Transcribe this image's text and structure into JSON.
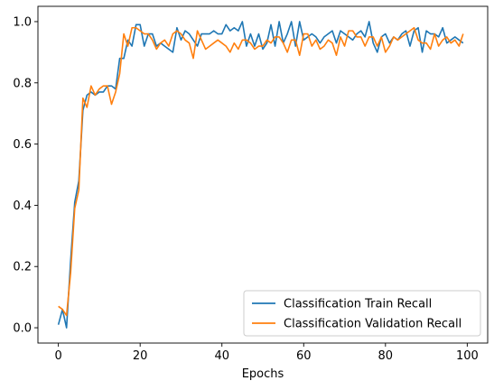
{
  "chart_data": {
    "type": "line",
    "title": "",
    "xlabel": "Epochs",
    "ylabel": "",
    "xlim": [
      -5,
      105
    ],
    "ylim": [
      -0.05,
      1.05
    ],
    "x_ticks": [
      0,
      20,
      40,
      60,
      80,
      100
    ],
    "y_ticks": [
      0.0,
      0.2,
      0.4,
      0.6,
      0.8,
      1.0
    ],
    "x_tick_labels": [
      "0",
      "20",
      "40",
      "60",
      "80",
      "100"
    ],
    "y_tick_labels": [
      "0.0",
      "0.2",
      "0.4",
      "0.6",
      "0.8",
      "1.0"
    ],
    "grid": false,
    "legend_position": "bottom-right",
    "x": [
      0,
      1,
      2,
      3,
      4,
      5,
      6,
      7,
      8,
      9,
      10,
      11,
      12,
      13,
      14,
      15,
      16,
      17,
      18,
      19,
      20,
      21,
      22,
      23,
      24,
      25,
      26,
      27,
      28,
      29,
      30,
      31,
      32,
      33,
      34,
      35,
      36,
      37,
      38,
      39,
      40,
      41,
      42,
      43,
      44,
      45,
      46,
      47,
      48,
      49,
      50,
      51,
      52,
      53,
      54,
      55,
      56,
      57,
      58,
      59,
      60,
      61,
      62,
      63,
      64,
      65,
      66,
      67,
      68,
      69,
      70,
      71,
      72,
      73,
      74,
      75,
      76,
      77,
      78,
      79,
      80,
      81,
      82,
      83,
      84,
      85,
      86,
      87,
      88,
      89,
      90,
      91,
      92,
      93,
      94,
      95,
      96,
      97,
      98,
      99
    ],
    "series": [
      {
        "name": "Classification Train Recall",
        "color": "#1f77b4",
        "values": [
          0.01,
          0.06,
          0.0,
          0.22,
          0.41,
          0.48,
          0.71,
          0.76,
          0.77,
          0.76,
          0.77,
          0.77,
          0.79,
          0.79,
          0.78,
          0.88,
          0.88,
          0.94,
          0.92,
          0.99,
          0.99,
          0.92,
          0.96,
          0.96,
          0.92,
          0.93,
          0.92,
          0.91,
          0.9,
          0.98,
          0.94,
          0.97,
          0.96,
          0.94,
          0.92,
          0.96,
          0.96,
          0.96,
          0.97,
          0.96,
          0.96,
          0.99,
          0.97,
          0.98,
          0.97,
          1.0,
          0.92,
          0.96,
          0.92,
          0.96,
          0.91,
          0.93,
          0.99,
          0.92,
          1.0,
          0.93,
          0.96,
          1.0,
          0.92,
          1.0,
          0.94,
          0.95,
          0.96,
          0.95,
          0.93,
          0.95,
          0.96,
          0.97,
          0.93,
          0.97,
          0.96,
          0.95,
          0.94,
          0.96,
          0.97,
          0.95,
          1.0,
          0.93,
          0.9,
          0.95,
          0.96,
          0.93,
          0.95,
          0.94,
          0.96,
          0.97,
          0.92,
          0.97,
          0.98,
          0.9,
          0.97,
          0.96,
          0.96,
          0.95,
          0.98,
          0.93,
          0.94,
          0.95,
          0.94,
          0.93
        ]
      },
      {
        "name": "Classification Validation Recall",
        "color": "#ff7f0e",
        "values": [
          0.07,
          0.06,
          0.04,
          0.18,
          0.39,
          0.45,
          0.75,
          0.72,
          0.79,
          0.76,
          0.78,
          0.79,
          0.79,
          0.73,
          0.77,
          0.83,
          0.96,
          0.92,
          0.98,
          0.98,
          0.97,
          0.96,
          0.96,
          0.94,
          0.91,
          0.93,
          0.94,
          0.92,
          0.96,
          0.97,
          0.96,
          0.94,
          0.93,
          0.88,
          0.97,
          0.94,
          0.91,
          0.92,
          0.93,
          0.94,
          0.93,
          0.92,
          0.9,
          0.93,
          0.91,
          0.94,
          0.94,
          0.93,
          0.91,
          0.92,
          0.92,
          0.94,
          0.93,
          0.95,
          0.95,
          0.93,
          0.9,
          0.94,
          0.94,
          0.89,
          0.96,
          0.96,
          0.92,
          0.94,
          0.91,
          0.92,
          0.94,
          0.93,
          0.89,
          0.95,
          0.92,
          0.97,
          0.97,
          0.95,
          0.95,
          0.92,
          0.95,
          0.95,
          0.92,
          0.95,
          0.9,
          0.92,
          0.95,
          0.94,
          0.95,
          0.96,
          0.97,
          0.98,
          0.94,
          0.93,
          0.93,
          0.91,
          0.96,
          0.92,
          0.94,
          0.95,
          0.93,
          0.94,
          0.92,
          0.96
        ]
      }
    ]
  }
}
